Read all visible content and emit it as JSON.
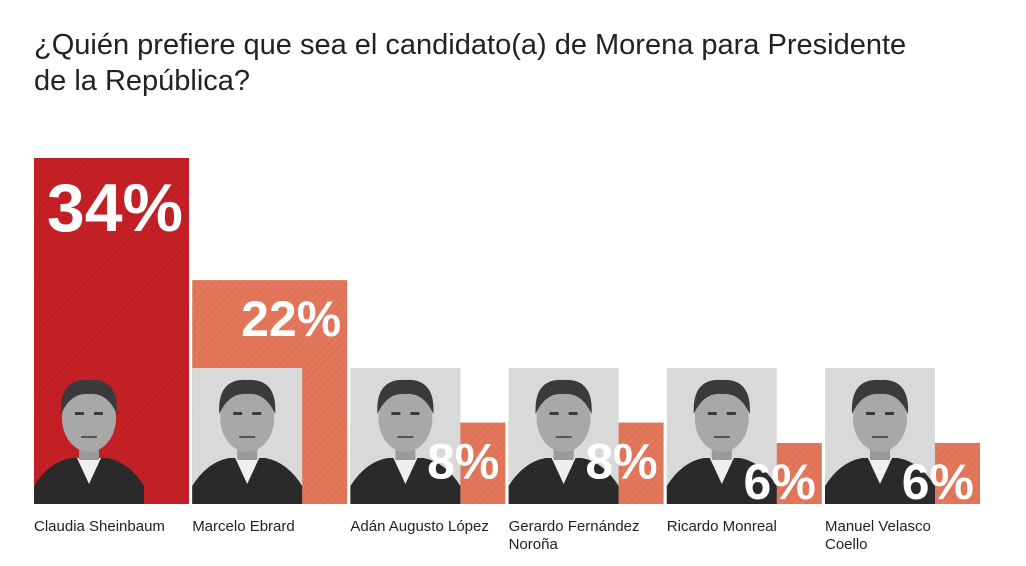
{
  "title": "¿Quién prefiere que sea el candidato(a) de Morena para Presidente de la República?",
  "colors": {
    "leader": "#c52026",
    "others": "#e2775b",
    "hatch_leader": "#b31b21",
    "hatch_others": "#d86a4f"
  },
  "chart_data": {
    "type": "bar",
    "title": "¿Quién prefiere que sea el candidato(a) de Morena para Presidente de la República?",
    "xlabel": "",
    "ylabel": "",
    "categories": [
      "Claudia Sheinbaum",
      "Marcelo Ebrard",
      "Adán Augusto López",
      "Gerardo Fernández Noroña",
      "Ricardo Monreal",
      "Manuel Velasco Coello"
    ],
    "values": [
      34,
      22,
      8,
      8,
      6,
      6
    ],
    "value_labels": [
      "34%",
      "22%",
      "8%",
      "8%",
      "6%",
      "6%"
    ],
    "name_lines": [
      [
        "Claudia Sheinbaum"
      ],
      [
        "Marcelo Ebrard"
      ],
      [
        "Adán Augusto López"
      ],
      [
        "Gerardo Fernández",
        "Noroña"
      ],
      [
        "Ricardo Monreal"
      ],
      [
        "Manuel Velasco",
        "Coello"
      ]
    ],
    "portrait_icons": [
      "portrait-icon",
      "portrait-icon",
      "portrait-icon",
      "portrait-icon",
      "portrait-icon",
      "portrait-icon"
    ],
    "ylim": [
      0,
      34
    ],
    "grid": false,
    "legend": "none"
  }
}
